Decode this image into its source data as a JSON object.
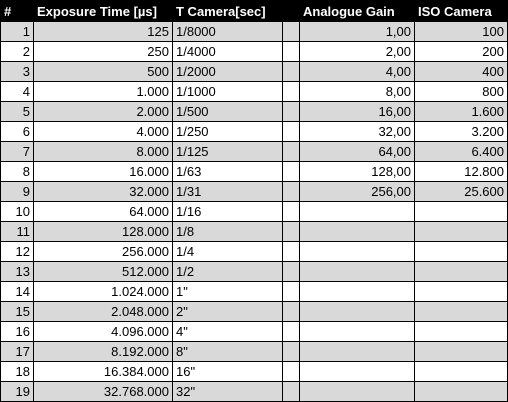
{
  "headers": [
    "#",
    "Exposure Time [µs]",
    "T Camera[sec]",
    "",
    "Analogue Gain",
    "ISO Camera"
  ],
  "rows": [
    [
      "1",
      "125",
      "1/8000",
      "",
      "1,00",
      "100"
    ],
    [
      "2",
      "250",
      "1/4000",
      "",
      "2,00",
      "200"
    ],
    [
      "3",
      "500",
      "1/2000",
      "",
      "4,00",
      "400"
    ],
    [
      "4",
      "1.000",
      "1/1000",
      "",
      "8,00",
      "800"
    ],
    [
      "5",
      "2.000",
      "1/500",
      "",
      "16,00",
      "1.600"
    ],
    [
      "6",
      "4.000",
      "1/250",
      "",
      "32,00",
      "3.200"
    ],
    [
      "7",
      "8.000",
      "1/125",
      "",
      "64,00",
      "6.400"
    ],
    [
      "8",
      "16.000",
      "1/63",
      "",
      "128,00",
      "12.800"
    ],
    [
      "9",
      "32.000",
      "1/31",
      "",
      "256,00",
      "25.600"
    ],
    [
      "10",
      "64.000",
      "1/16",
      "",
      "",
      ""
    ],
    [
      "11",
      "128.000",
      "1/8",
      "",
      "",
      ""
    ],
    [
      "12",
      "256.000",
      "1/4",
      "",
      "",
      ""
    ],
    [
      "13",
      "512.000",
      "1/2",
      "",
      "",
      ""
    ],
    [
      "14",
      "1.024.000",
      "1\"",
      "",
      "",
      ""
    ],
    [
      "15",
      "2.048.000",
      "2\"",
      "",
      "",
      ""
    ],
    [
      "16",
      "4.096.000",
      "4\"",
      "",
      "",
      ""
    ],
    [
      "17",
      "8.192.000",
      "8\"",
      "",
      "",
      ""
    ],
    [
      "18",
      "16.384.000",
      "16\"",
      "",
      "",
      ""
    ],
    [
      "19",
      "32.768.000",
      "32\"",
      "",
      "",
      ""
    ]
  ]
}
